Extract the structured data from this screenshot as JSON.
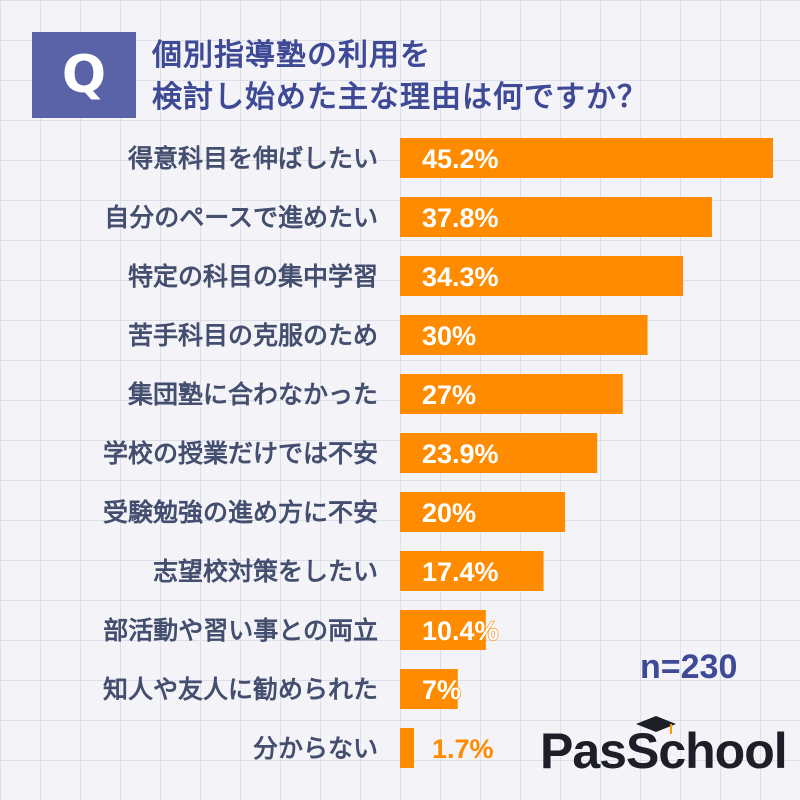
{
  "header": {
    "badge_letter": "Q",
    "title_line1": "個別指導塾の利用を",
    "title_line2": "検討し始めた主な理由は何ですか？"
  },
  "sample_size": "n=230",
  "logo": {
    "text": "PasSchool",
    "icon": "graduation-cap-icon"
  },
  "colors": {
    "bar": "#ff8c00",
    "title": "#3f4a96",
    "label": "#444e6e",
    "badge": "#5b63a8"
  },
  "chart_data": {
    "type": "bar",
    "orientation": "horizontal",
    "title": "個別指導塾の利用を検討し始めた主な理由は何ですか？",
    "categories": [
      "得意科目を伸ばしたい",
      "自分のペースで進めたい",
      "特定の科目の集中学習",
      "苦手科目の克服のため",
      "集団塾に合わなかった",
      "学校の授業だけでは不安",
      "受験勉強の進め方に不安",
      "志望校対策をしたい",
      "部活動や習い事との両立",
      "知人や友人に勧められた",
      "分からない"
    ],
    "values": [
      45.2,
      37.8,
      34.3,
      30,
      27,
      23.9,
      20,
      17.4,
      10.4,
      7,
      1.7
    ],
    "value_labels": [
      "45.2%",
      "37.8%",
      "34.3%",
      "30%",
      "27%",
      "23.9%",
      "20%",
      "17.4%",
      "10.4%",
      "7%",
      "1.7%"
    ],
    "unit": "%",
    "xlim": [
      0,
      45.2
    ],
    "grid": false,
    "legend": "none"
  }
}
